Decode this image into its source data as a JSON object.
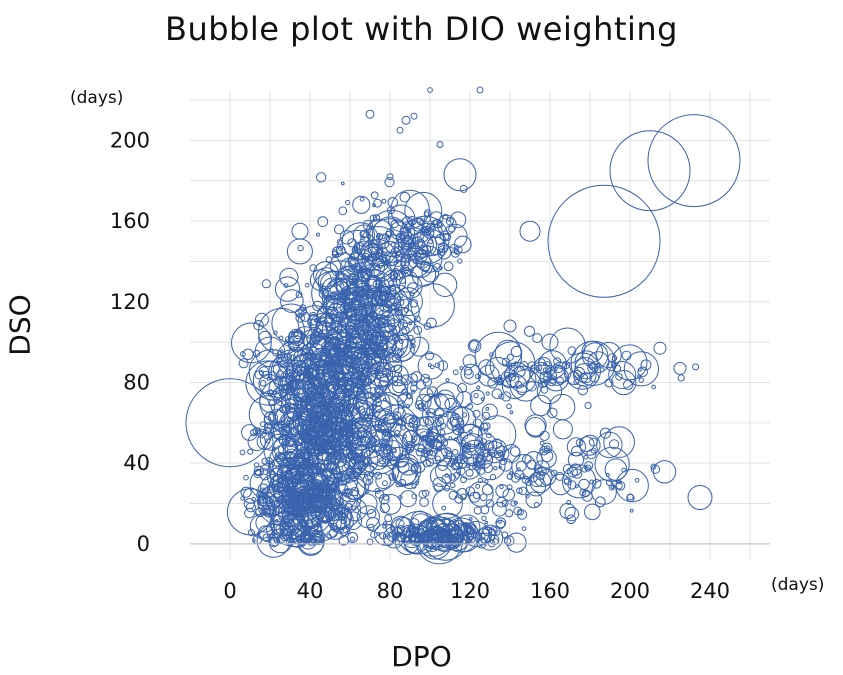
{
  "chart_data": {
    "type": "scatter",
    "title": "Bubble plot with DIO weighting",
    "xlabel": "DPO",
    "ylabel": "DSO",
    "x_unit": "(days)",
    "y_unit": "(days)",
    "xlim": [
      -20,
      270
    ],
    "ylim": [
      -8,
      225
    ],
    "x_ticks": [
      "0",
      "40",
      "80",
      "120",
      "160",
      "200",
      "240"
    ],
    "y_ticks": [
      "0",
      "40",
      "80",
      "120",
      "160",
      "200"
    ],
    "grid": true,
    "bubble_color": "#3a63ad",
    "clusters": [
      {
        "x": 45,
        "y": 60,
        "sx": 15,
        "sy": 30,
        "n": 900
      },
      {
        "x": 70,
        "y": 110,
        "sx": 12,
        "sy": 25,
        "n": 500
      },
      {
        "x": 95,
        "y": 150,
        "sx": 12,
        "sy": 10,
        "n": 120
      },
      {
        "x": 35,
        "y": 20,
        "sx": 10,
        "sy": 12,
        "n": 250
      },
      {
        "x": 100,
        "y": 50,
        "sx": 22,
        "sy": 15,
        "n": 300
      },
      {
        "x": 105,
        "y": 4,
        "sx": 15,
        "sy": 3,
        "n": 200
      },
      {
        "x": 150,
        "y": 85,
        "sx": 22,
        "sy": 8,
        "n": 70
      },
      {
        "x": 180,
        "y": 85,
        "sx": 20,
        "sy": 6,
        "n": 50
      },
      {
        "x": 175,
        "y": 35,
        "sx": 18,
        "sy": 10,
        "n": 80
      },
      {
        "x": 130,
        "y": 30,
        "sx": 15,
        "sy": 10,
        "n": 60
      }
    ],
    "bubbles": [
      {
        "x": 187,
        "y": 150,
        "size": 28
      },
      {
        "x": 210,
        "y": 185,
        "size": 20
      },
      {
        "x": 232,
        "y": 190,
        "size": 23
      },
      {
        "x": 0,
        "y": 60,
        "size": 22
      },
      {
        "x": 115,
        "y": 183,
        "size": 8
      },
      {
        "x": 35,
        "y": 155,
        "size": 4
      },
      {
        "x": 150,
        "y": 155,
        "size": 5
      },
      {
        "x": 225,
        "y": 87,
        "size": 3
      },
      {
        "x": 235,
        "y": 23,
        "size": 6
      },
      {
        "x": 215,
        "y": 97,
        "size": 3
      },
      {
        "x": 70,
        "y": 213,
        "size": 2
      },
      {
        "x": 88,
        "y": 210,
        "size": 2
      },
      {
        "x": 92,
        "y": 212,
        "size": 1.5
      },
      {
        "x": 85,
        "y": 205,
        "size": 1.5
      },
      {
        "x": 105,
        "y": 198,
        "size": 1.5
      },
      {
        "x": 125,
        "y": 225,
        "size": 1.5
      },
      {
        "x": 100,
        "y": 225,
        "size": 1.2
      },
      {
        "x": 80,
        "y": 182,
        "size": 1.5
      },
      {
        "x": 160,
        "y": 100,
        "size": 4
      },
      {
        "x": 140,
        "y": 108,
        "size": 3
      }
    ]
  }
}
